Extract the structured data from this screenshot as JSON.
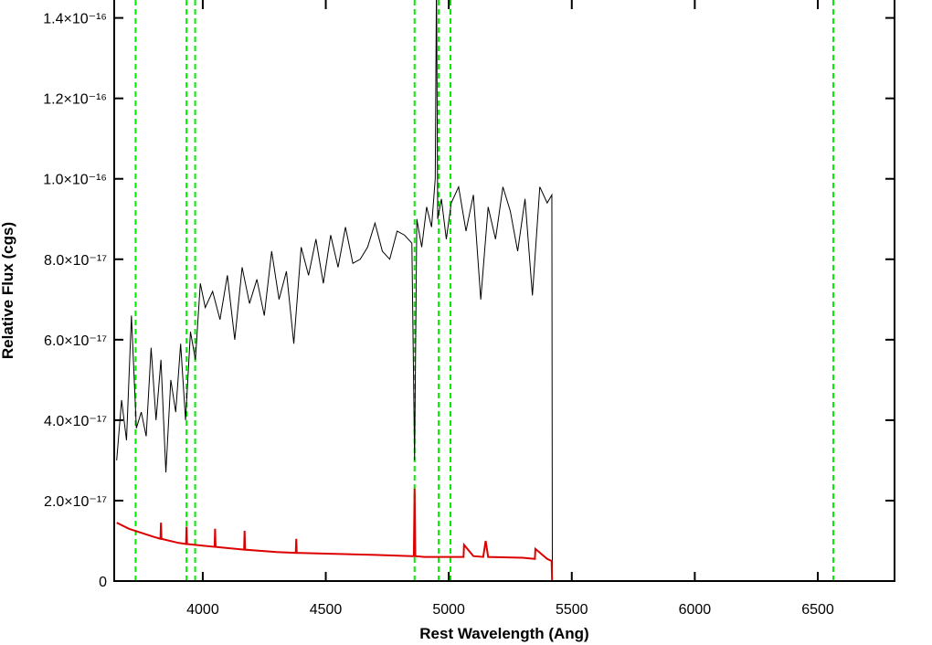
{
  "chart_data": {
    "type": "line",
    "xlabel": "Rest Wavelength (Ang)",
    "ylabel": "Relative Flux (cgs)",
    "xlim": [
      3640,
      6812
    ],
    "ylim": [
      0,
      1.44e-16
    ],
    "xticks": [
      4000,
      4500,
      5000,
      5500,
      6000,
      6500
    ],
    "yticks": [
      0,
      {
        "value": 2e-17,
        "label": "2.0×10⁻¹⁷"
      },
      {
        "value": 4e-17,
        "label": "4.0×10⁻¹⁷"
      },
      {
        "value": 6e-17,
        "label": "6.0×10⁻¹⁷"
      },
      {
        "value": 8e-17,
        "label": "8.0×10⁻¹⁷"
      },
      {
        "value": 1e-16,
        "label": "1.0×10⁻¹⁶"
      },
      {
        "value": 1.2e-16,
        "label": "1.2×10⁻¹⁶"
      },
      {
        "value": 1.4e-16,
        "label": "1.4×10⁻¹⁶"
      }
    ],
    "vlines": {
      "color": "#00ee00",
      "values": [
        3727,
        3934,
        3969,
        4861,
        4959,
        5007,
        6563
      ]
    },
    "series": [
      {
        "color": "#000000",
        "x": [
          3650,
          3670,
          3690,
          3710,
          3730,
          3750,
          3770,
          3790,
          3810,
          3830,
          3850,
          3870,
          3890,
          3910,
          3930,
          3950,
          3970,
          3990,
          4010,
          4040,
          4070,
          4100,
          4130,
          4160,
          4190,
          4220,
          4250,
          4280,
          4310,
          4340,
          4370,
          4400,
          4430,
          4460,
          4490,
          4520,
          4550,
          4580,
          4610,
          4640,
          4670,
          4700,
          4730,
          4760,
          4790,
          4820,
          4850,
          4861,
          4870,
          4890,
          4910,
          4930,
          4945,
          4950,
          4955,
          4970,
          4990,
          5010,
          5040,
          5070,
          5100,
          5130,
          5160,
          5190,
          5220,
          5250,
          5280,
          5310,
          5340,
          5370,
          5400,
          5419,
          5421,
          6810
        ],
        "values": [
          3e-17,
          4.5e-17,
          3.5e-17,
          6.6e-17,
          3.8e-17,
          4.2e-17,
          3.6e-17,
          5.8e-17,
          4e-17,
          5.5e-17,
          2.7e-17,
          5e-17,
          4.2e-17,
          5.9e-17,
          4e-17,
          6.2e-17,
          5.5e-17,
          7.4e-17,
          6.8e-17,
          7.2e-17,
          6.5e-17,
          7.6e-17,
          6e-17,
          7.8e-17,
          6.9e-17,
          7.5e-17,
          6.6e-17,
          8.2e-17,
          7e-17,
          7.7e-17,
          5.9e-17,
          8.3e-17,
          7.6e-17,
          8.5e-17,
          7.4e-17,
          8.6e-17,
          7.8e-17,
          8.8e-17,
          7.9e-17,
          8e-17,
          8.3e-17,
          8.9e-17,
          8.2e-17,
          8e-17,
          8.7e-17,
          8.6e-17,
          8.4e-17,
          3e-17,
          9e-17,
          8.3e-17,
          9.3e-17,
          8.8e-17,
          1e-16,
          1.5e-16,
          9e-17,
          9.5e-17,
          8.5e-17,
          9.4e-17,
          9.8e-17,
          8.7e-17,
          9.6e-17,
          7e-17,
          9.3e-17,
          8.5e-17,
          9.8e-17,
          9.2e-17,
          8.2e-17,
          9.5e-17,
          7.1e-17,
          9.8e-17,
          9.4e-17,
          9.6e-17,
          0,
          0
        ]
      },
      {
        "color": "#dd0000",
        "x": [
          3650,
          3700,
          3800,
          3828,
          3830,
          3832,
          3900,
          3932,
          3934,
          3936,
          4000,
          4048,
          4050,
          4052,
          4100,
          4168,
          4170,
          4172,
          4300,
          4378,
          4380,
          4382,
          4500,
          4700,
          4850,
          4858,
          4861,
          4864,
          4900,
          5000,
          5060,
          5062,
          5100,
          5140,
          5150,
          5160,
          5300,
          5350,
          5352,
          5400,
          5418,
          5420,
          6810
        ],
        "values": [
          1.45e-17,
          1.3e-17,
          1.1e-17,
          1.05e-17,
          1.45e-17,
          1.05e-17,
          9.5e-18,
          9.2e-18,
          1.35e-17,
          9.2e-18,
          8.8e-18,
          8.5e-18,
          1.3e-17,
          8.5e-18,
          8.2e-18,
          7.8e-18,
          1.25e-17,
          7.8e-18,
          7.2e-18,
          7e-18,
          1.05e-17,
          7e-18,
          6.8e-18,
          6.5e-18,
          6.2e-18,
          6.2e-18,
          2.3e-17,
          6.2e-18,
          6e-18,
          6e-18,
          6e-18,
          9e-18,
          6.2e-18,
          6e-18,
          1e-17,
          6e-18,
          5.8e-18,
          5.5e-18,
          8e-18,
          5.5e-18,
          5e-18,
          0,
          0
        ]
      }
    ]
  }
}
